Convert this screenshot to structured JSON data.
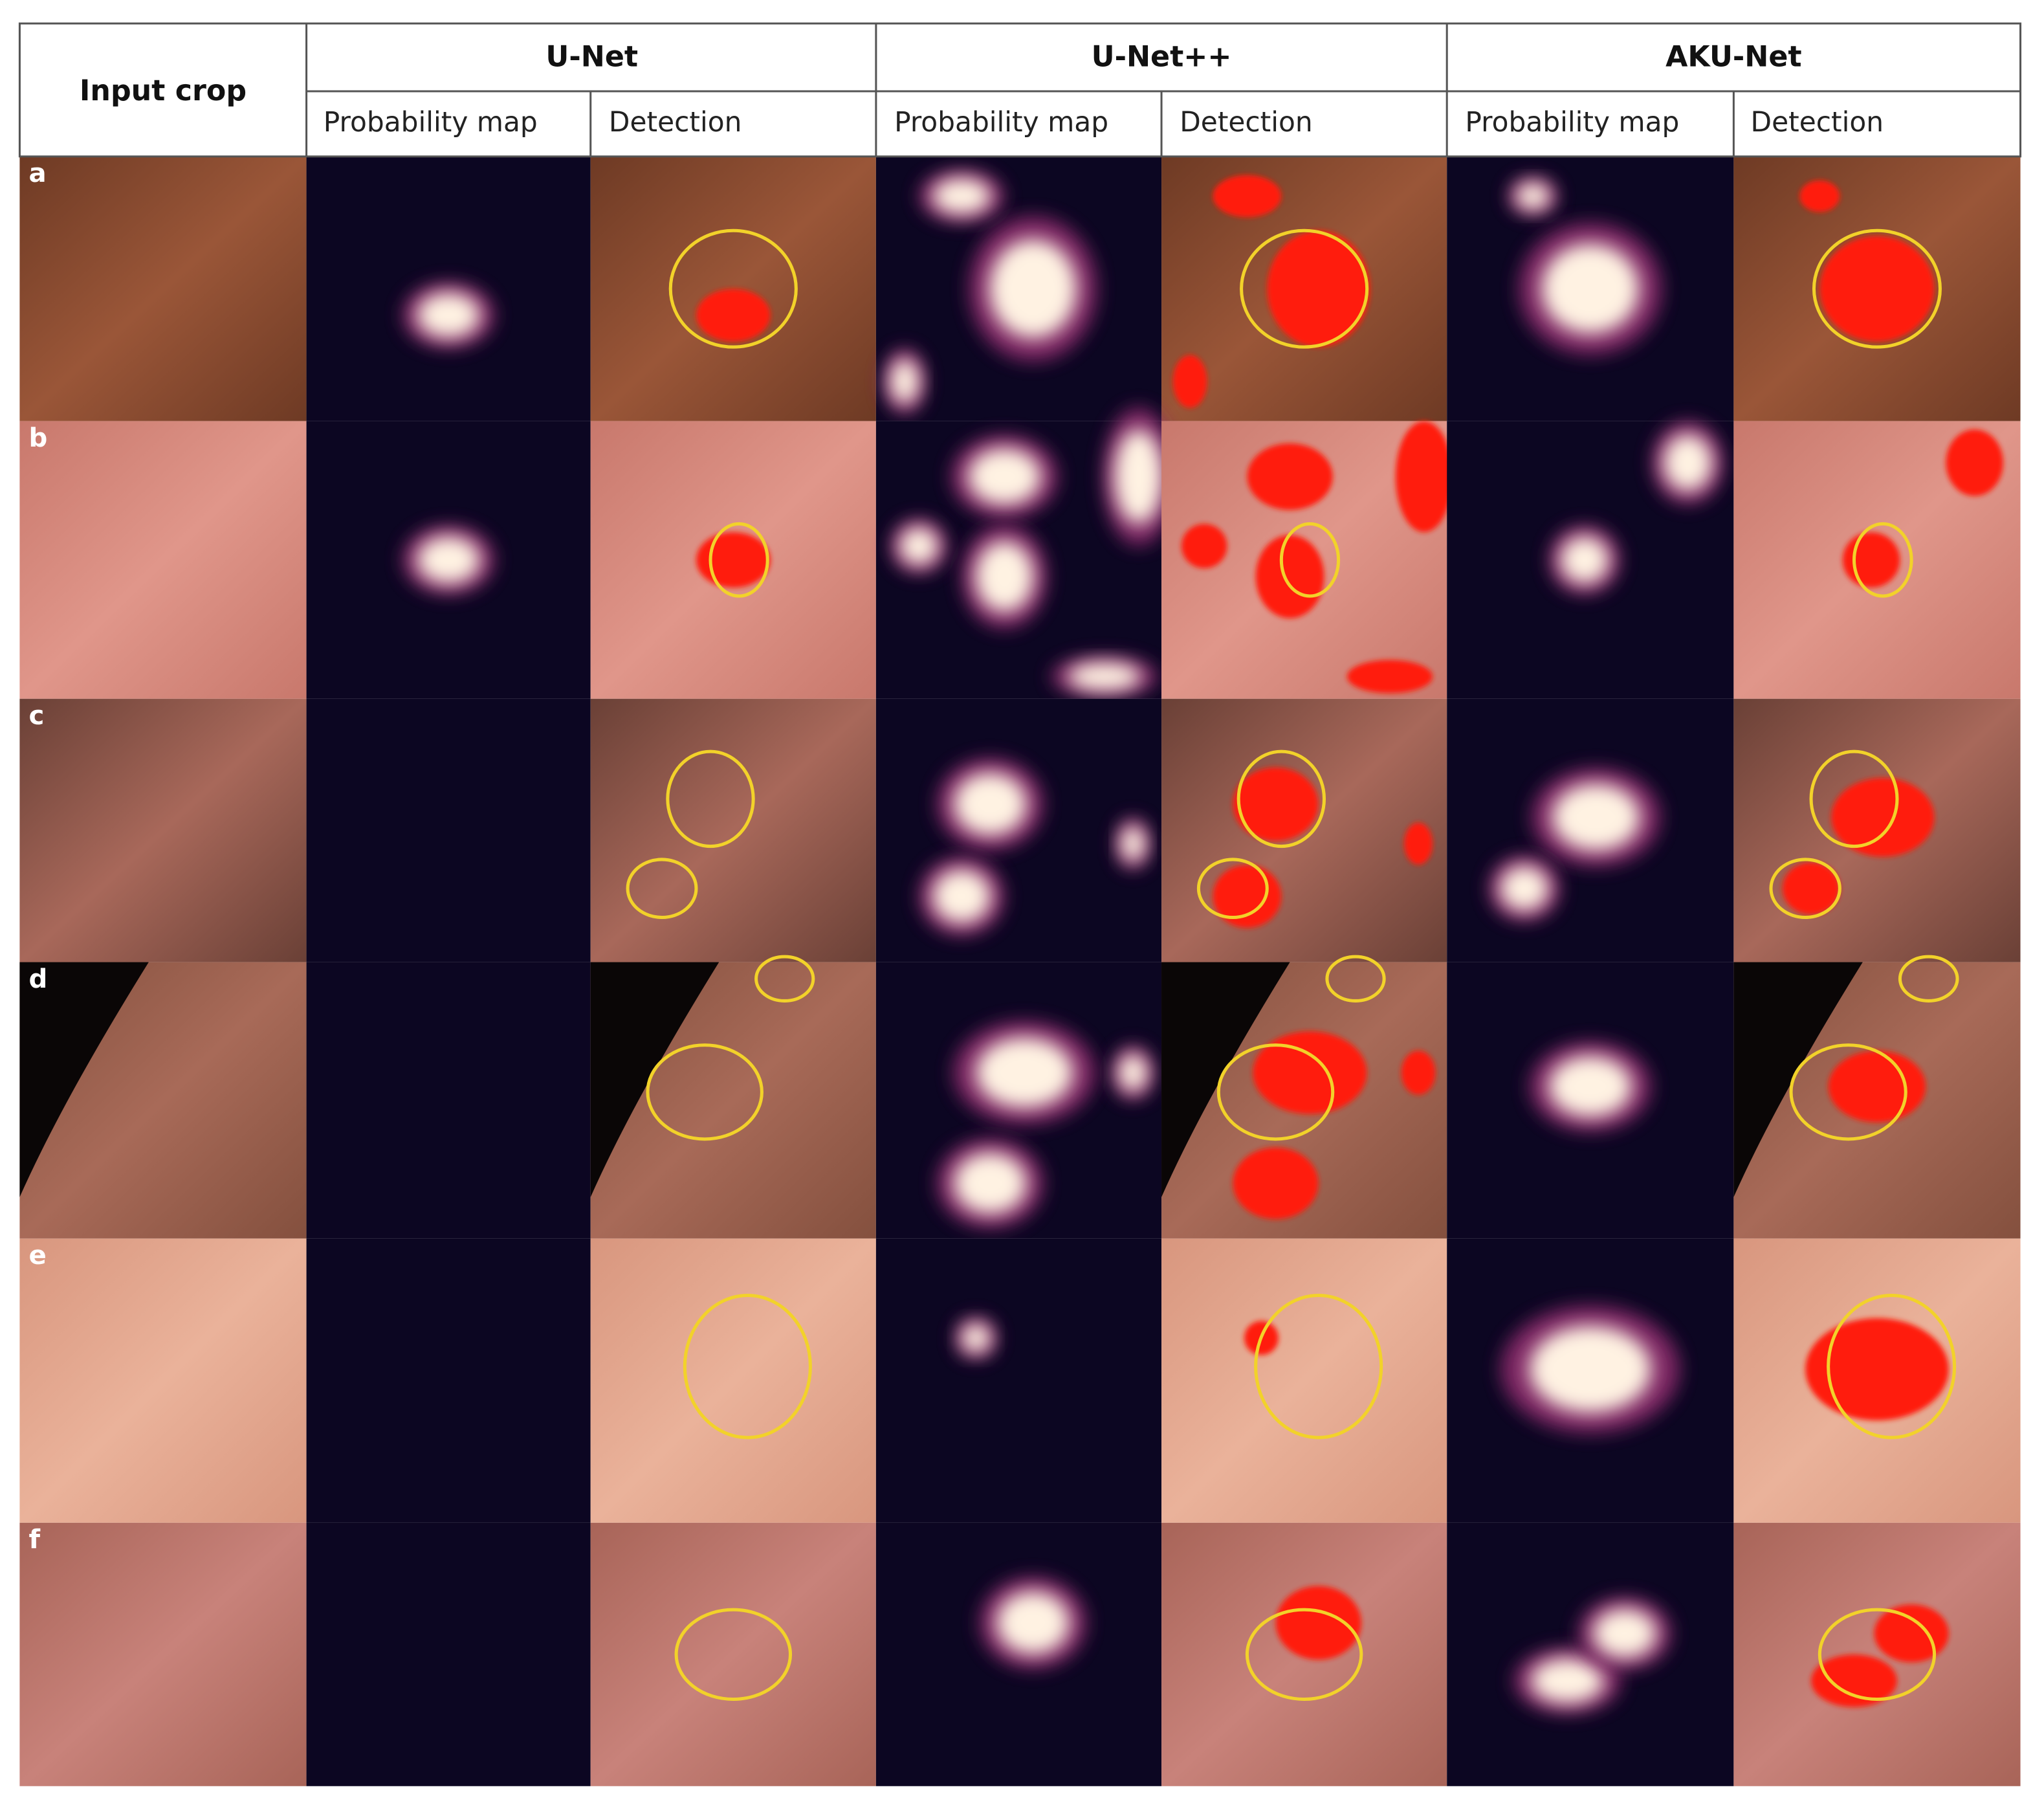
{
  "header": {
    "input_crop": "Input crop",
    "groups": [
      "U-Net",
      "U-Net++",
      "AKU-Net"
    ],
    "subheaders": [
      "Probability map",
      "Detection",
      "Probability map",
      "Detection",
      "Probability map",
      "Detection"
    ]
  },
  "rows": [
    {
      "label": "a"
    },
    {
      "label": "b"
    },
    {
      "label": "c"
    },
    {
      "label": "d"
    },
    {
      "label": "e"
    },
    {
      "label": "f"
    }
  ]
}
